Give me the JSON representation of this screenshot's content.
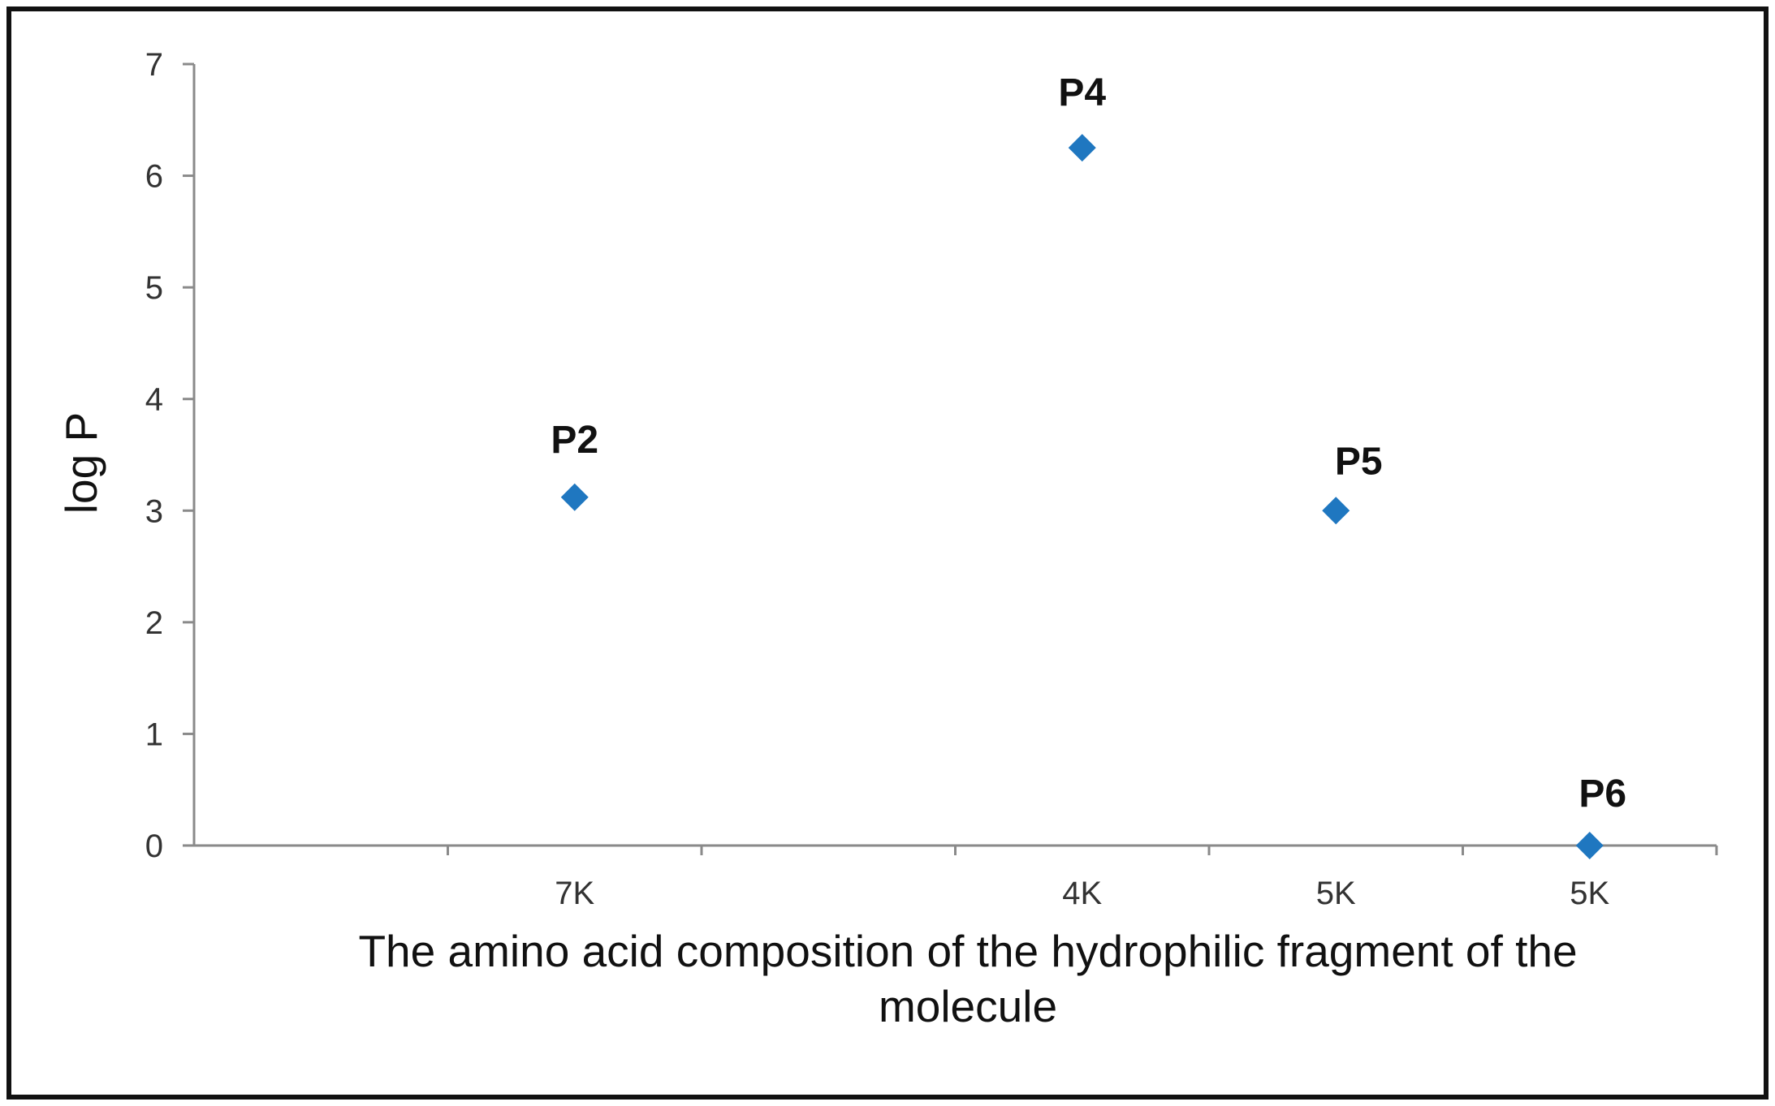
{
  "chart_data": {
    "type": "scatter",
    "title": "",
    "xlabel_lines": [
      "The amino acid composition of the hydrophilic fragment of the",
      "molecule"
    ],
    "ylabel": "log P",
    "ylim": [
      0,
      7
    ],
    "yticks": [
      0,
      1,
      2,
      3,
      4,
      5,
      6,
      7
    ],
    "categories": [
      "7K",
      "4K",
      "5K",
      "5K"
    ],
    "grid": false,
    "legend": "none",
    "marker_color": "#1F77C0",
    "points": [
      {
        "category": "7K",
        "label": "P2",
        "y": 3.12
      },
      {
        "category": "4K",
        "label": "P4",
        "y": 6.25
      },
      {
        "category": "5K",
        "label": "P5",
        "y": 3.0
      },
      {
        "category": "5K",
        "label": "P6",
        "y": 0.0
      }
    ]
  }
}
